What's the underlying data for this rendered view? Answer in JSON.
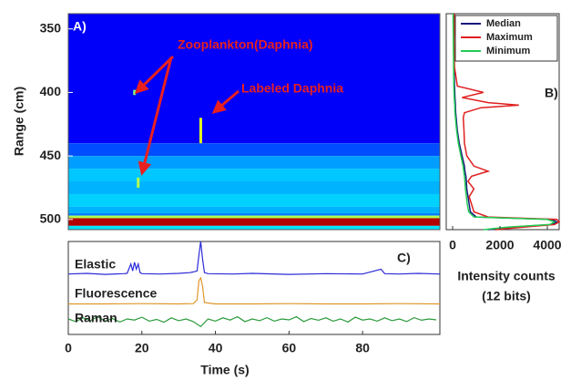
{
  "chart_data": [
    {
      "type": "heatmap",
      "annotations": [
        "A)",
        "Zooplankton(Daphnia)",
        "Labeled Daphnia"
      ],
      "ylabel": "Range (cm)",
      "xlim": [
        0,
        101
      ],
      "ylim": [
        338,
        508
      ],
      "y_inverted": true,
      "yticks": [
        350,
        400,
        450,
        500
      ],
      "range_edges": [
        338,
        440,
        450,
        460,
        470,
        480,
        490,
        495,
        497,
        499,
        505,
        508
      ],
      "intensity": [
        0.12,
        0.2,
        0.28,
        0.32,
        0.3,
        0.33,
        0.3,
        0.25,
        0.55,
        0.95,
        0.35
      ],
      "spots": [
        {
          "time": 18,
          "range": [
            398,
            402
          ],
          "intensity": 0.5
        },
        {
          "time": 36,
          "range": [
            420,
            440
          ],
          "intensity": 0.6
        },
        {
          "time": 19,
          "range": [
            467,
            475
          ],
          "intensity": 0.55
        }
      ]
    },
    {
      "type": "line",
      "orientation": "horizontal",
      "annotations": [
        "B)"
      ],
      "xlabel": [
        "Intensity counts",
        "(12 bits)"
      ],
      "xlim": [
        -270,
        4500
      ],
      "xticks": [
        0,
        2000,
        4000
      ],
      "ylim": [
        338,
        508
      ],
      "y_inverted": true,
      "legend": "upper right",
      "y": [
        338,
        360,
        380,
        395,
        400,
        404,
        408,
        410,
        412,
        416,
        420,
        430,
        440,
        450,
        458,
        462,
        466,
        470,
        476,
        482,
        488,
        494,
        498,
        500,
        502,
        504,
        506,
        508
      ],
      "series": [
        {
          "name": "Median",
          "color": "#1a1a7a",
          "values": [
            40,
            50,
            60,
            80,
            90,
            100,
            110,
            120,
            120,
            130,
            150,
            200,
            280,
            400,
            500,
            520,
            560,
            580,
            600,
            650,
            700,
            750,
            1000,
            4200,
            4400,
            4200,
            2500,
            1500
          ]
        },
        {
          "name": "Maximum",
          "color": "#e02020",
          "values": [
            80,
            60,
            80,
            200,
            1300,
            400,
            1500,
            2800,
            1200,
            500,
            450,
            480,
            500,
            600,
            900,
            1500,
            800,
            650,
            900,
            700,
            800,
            900,
            1500,
            4400,
            4500,
            4300,
            3000,
            1800
          ]
        },
        {
          "name": "Minimum",
          "color": "#22cc55",
          "values": [
            20,
            30,
            40,
            50,
            60,
            70,
            80,
            90,
            90,
            100,
            120,
            170,
            240,
            350,
            440,
            470,
            500,
            520,
            540,
            580,
            620,
            680,
            900,
            4000,
            4300,
            4100,
            2300,
            1300
          ]
        }
      ]
    },
    {
      "type": "line",
      "annotations": [
        "C)"
      ],
      "xlabel": "Time (s)",
      "xlim": [
        0,
        101
      ],
      "xticks": [
        0,
        20,
        40,
        60,
        80
      ],
      "ylim": [
        0,
        1
      ],
      "series": [
        {
          "name": "Elastic",
          "color": "#2b2bd8",
          "x": [
            0,
            5,
            10,
            15,
            16,
            17,
            17.5,
            18,
            18.5,
            19,
            19.5,
            20,
            25,
            30,
            33,
            34,
            35,
            35.5,
            36,
            36.5,
            37,
            38,
            45,
            50,
            60,
            70,
            80,
            85,
            86,
            90,
            95,
            101
          ],
          "values": [
            0.06,
            0.08,
            0.05,
            0.07,
            0.08,
            0.35,
            0.15,
            0.4,
            0.2,
            0.35,
            0.1,
            0.07,
            0.06,
            0.08,
            0.1,
            0.12,
            0.15,
            0.6,
            1.0,
            0.5,
            0.1,
            0.07,
            0.06,
            0.08,
            0.05,
            0.07,
            0.06,
            0.2,
            0.07,
            0.06,
            0.08,
            0.06
          ]
        },
        {
          "name": "Fluorescence",
          "color": "#e0962a",
          "x": [
            0,
            10,
            20,
            30,
            34,
            35,
            35.5,
            36,
            36.5,
            37,
            40,
            50,
            60,
            70,
            80,
            90,
            101
          ],
          "values": [
            0.05,
            0.05,
            0.06,
            0.05,
            0.06,
            0.2,
            0.9,
            1.0,
            0.7,
            0.1,
            0.05,
            0.05,
            0.06,
            0.05,
            0.05,
            0.06,
            0.05
          ]
        },
        {
          "name": "Raman",
          "color": "#2a9a3a",
          "x": [
            0,
            2,
            4,
            6,
            8,
            10,
            12,
            14,
            16,
            18,
            20,
            22,
            24,
            26,
            28,
            30,
            32,
            34,
            36,
            38,
            40,
            42,
            44,
            46,
            48,
            50,
            52,
            54,
            56,
            58,
            60,
            62,
            64,
            66,
            68,
            70,
            72,
            74,
            76,
            78,
            80,
            82,
            84,
            86,
            88,
            90,
            92,
            94,
            96,
            98,
            100
          ],
          "values": [
            0.5,
            0.38,
            0.55,
            0.42,
            0.6,
            0.4,
            0.52,
            0.36,
            0.5,
            0.45,
            0.58,
            0.4,
            0.48,
            0.35,
            0.55,
            0.42,
            0.5,
            0.38,
            0.15,
            0.5,
            0.4,
            0.55,
            0.45,
            0.6,
            0.38,
            0.5,
            0.42,
            0.56,
            0.4,
            0.5,
            0.46,
            0.6,
            0.38,
            0.52,
            0.44,
            0.55,
            0.4,
            0.5,
            0.36,
            0.58,
            0.45,
            0.5,
            0.4,
            0.55,
            0.42,
            0.5,
            0.38,
            0.56,
            0.44,
            0.5,
            0.46
          ]
        }
      ]
    }
  ]
}
